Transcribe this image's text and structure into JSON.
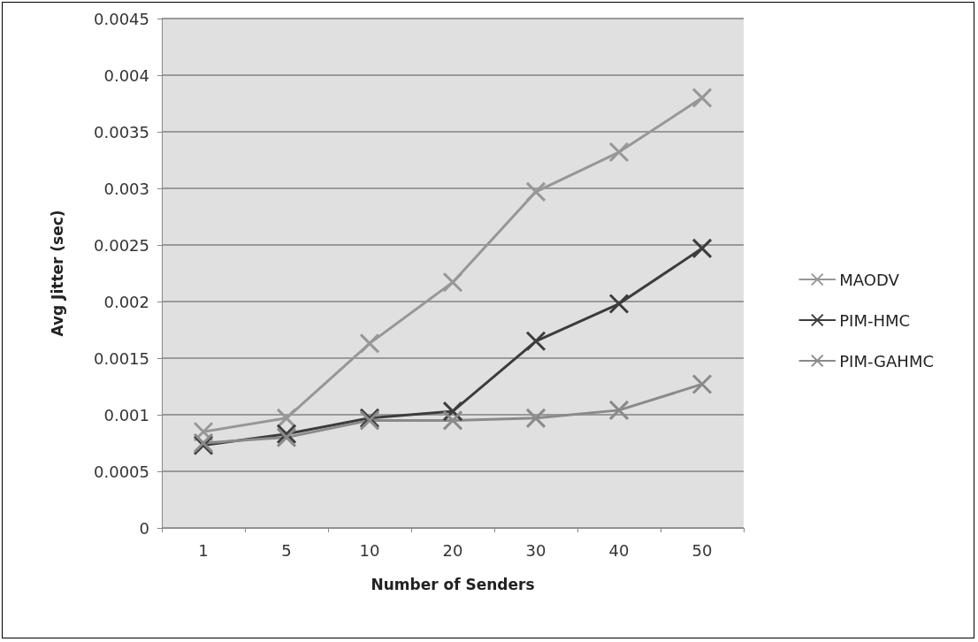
{
  "chart_data": {
    "type": "line",
    "xlabel": "Number of Senders",
    "ylabel": "Avg Jitter (sec)",
    "categories": [
      "1",
      "5",
      "10",
      "20",
      "30",
      "40",
      "50"
    ],
    "series": [
      {
        "name": "MAODV",
        "color": "#979797",
        "values": [
          0.00085,
          0.00097,
          0.00163,
          0.00217,
          0.00297,
          0.00332,
          0.0038
        ]
      },
      {
        "name": "PIM-HMC",
        "color": "#3c3c3c",
        "values": [
          0.00073,
          0.00083,
          0.00097,
          0.00103,
          0.00165,
          0.00198,
          0.00247
        ]
      },
      {
        "name": "PIM-GAHMC",
        "color": "#8a8a8a",
        "values": [
          0.00075,
          0.0008,
          0.00095,
          0.00095,
          0.00097,
          0.00104,
          0.00127
        ]
      }
    ],
    "ylim": [
      0,
      0.0045
    ],
    "yticks": [
      0,
      0.0005,
      0.001,
      0.0015,
      0.002,
      0.0025,
      0.003,
      0.0035,
      0.004,
      0.0045
    ],
    "grid": "y",
    "legend": "right",
    "marker": "cross",
    "line_style": "solid"
  }
}
